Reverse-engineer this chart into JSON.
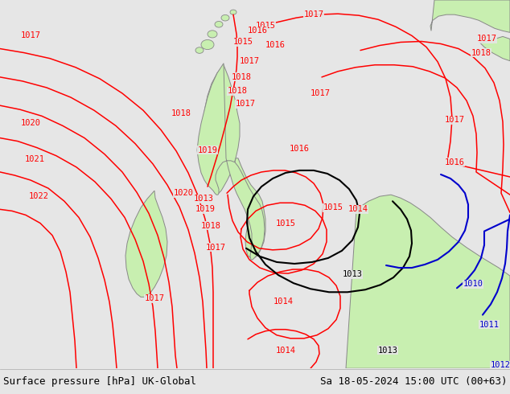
{
  "title_left": "Surface pressure [hPa] UK-Global",
  "title_right": "Sa 18-05-2024 15:00 UTC (00+63)",
  "bg_color": "#e6e6e6",
  "land_color": "#c8efb0",
  "border_color": "#888888",
  "figsize": [
    6.34,
    4.9
  ],
  "dpi": 100,
  "footer_bg": "#d2d2d2",
  "footer_text_color": "#000000",
  "red": "#ff0000",
  "black": "#000000",
  "blue": "#0000cc"
}
